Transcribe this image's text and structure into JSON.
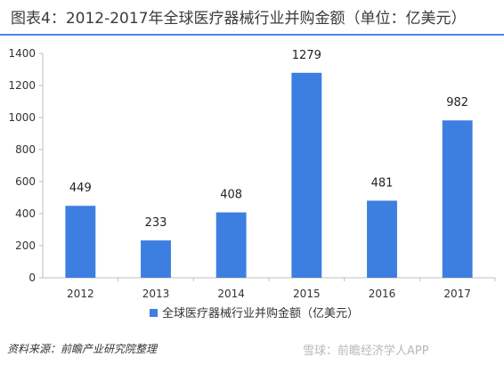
{
  "page": {
    "title": "图表4：2012-2017年全球医疗器械行业并购金额（单位：亿美元）",
    "source": "资料来源：前瞻产业研究院整理",
    "footer_watermark": "雪球：前瞻经济学人APP",
    "accent_color": "#3d7fe0"
  },
  "chart_data": {
    "type": "bar",
    "categories": [
      "2012",
      "2013",
      "2014",
      "2015",
      "2016",
      "2017"
    ],
    "series": [
      {
        "name": "全球医疗器械行业并购金额（亿美元）",
        "values": [
          449,
          233,
          408,
          1279,
          481,
          982
        ],
        "color": "#3d7fe0"
      }
    ],
    "data_labels": [
      "449",
      "233",
      "408",
      "1279",
      "481",
      "982"
    ],
    "yticks": [
      0,
      200,
      400,
      600,
      800,
      1000,
      1200,
      1400
    ],
    "ylim": [
      0,
      1400
    ],
    "grid": false,
    "legend_position": "bottom"
  }
}
